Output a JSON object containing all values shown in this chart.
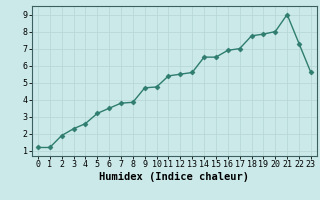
{
  "x": [
    0,
    1,
    2,
    3,
    4,
    5,
    6,
    7,
    8,
    9,
    10,
    11,
    12,
    13,
    14,
    15,
    16,
    17,
    18,
    19,
    20,
    21,
    22,
    23
  ],
  "y": [
    1.2,
    1.2,
    1.9,
    2.3,
    2.6,
    3.2,
    3.5,
    3.8,
    3.85,
    4.7,
    4.75,
    5.4,
    5.5,
    5.6,
    6.5,
    6.5,
    6.9,
    7.0,
    7.75,
    7.85,
    8.0,
    9.0,
    7.3,
    5.6
  ],
  "line_color": "#2e7d6e",
  "marker": "D",
  "marker_size": 2.5,
  "bg_color": "#cce9e9",
  "grid_color": "#b8d8d8",
  "xlabel": "Humidex (Indice chaleur)",
  "xlim": [
    -0.5,
    23.5
  ],
  "ylim": [
    0.7,
    9.5
  ],
  "yticks": [
    1,
    2,
    3,
    4,
    5,
    6,
    7,
    8,
    9
  ],
  "xticks": [
    0,
    1,
    2,
    3,
    4,
    5,
    6,
    7,
    8,
    9,
    10,
    11,
    12,
    13,
    14,
    15,
    16,
    17,
    18,
    19,
    20,
    21,
    22,
    23
  ],
  "tick_label_fontsize": 6,
  "xlabel_fontsize": 7.5,
  "line_width": 1.0
}
